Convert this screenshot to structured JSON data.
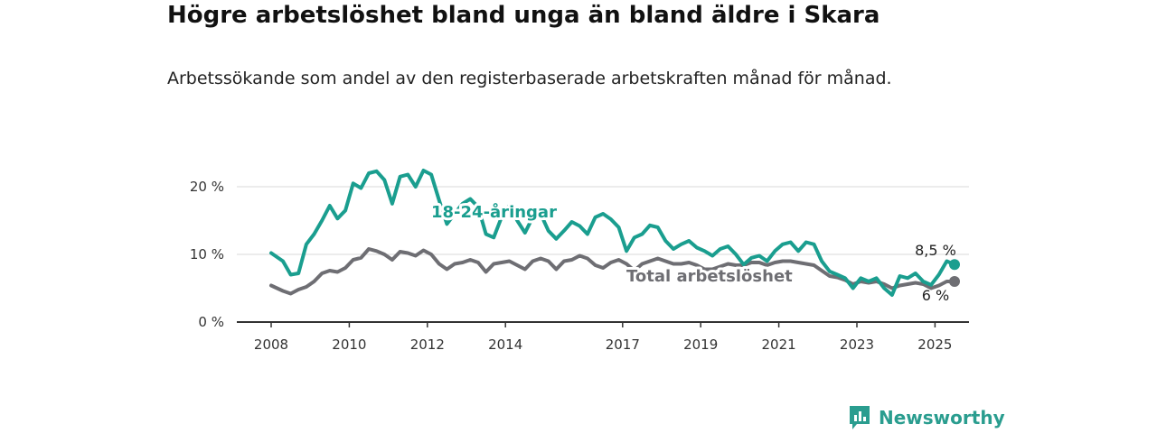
{
  "title": "Högre arbetslöshet bland unga än bland äldre i Skara",
  "subtitle": "Arbetssökande som andel av den registerbaserade arbetskraften månad för månad.",
  "brand": "Newsworthy",
  "colors": {
    "youth": "#1a9e8f",
    "total": "#6e6e73",
    "grid": "#d9d9d9",
    "axis": "#333333"
  },
  "chart_data": {
    "type": "line",
    "x_ticks": [
      "2008",
      "2010",
      "2012",
      "2014",
      "2017",
      "2019",
      "2021",
      "2023",
      "2025"
    ],
    "y_ticks": [
      "0 %",
      "10 %",
      "20 %"
    ],
    "ylim": [
      0,
      25
    ],
    "grid": true,
    "series": [
      {
        "key": "youth",
        "name": "18-24-åringar",
        "end_label": "8,5 %",
        "end_value": 8.5,
        "points": [
          [
            2008.0,
            10.2
          ],
          [
            2008.3,
            9.0
          ],
          [
            2008.5,
            7.0
          ],
          [
            2008.7,
            7.2
          ],
          [
            2008.9,
            11.5
          ],
          [
            2009.1,
            13.0
          ],
          [
            2009.3,
            15.0
          ],
          [
            2009.5,
            17.2
          ],
          [
            2009.7,
            15.3
          ],
          [
            2009.9,
            16.5
          ],
          [
            2010.1,
            20.5
          ],
          [
            2010.3,
            19.8
          ],
          [
            2010.5,
            22.0
          ],
          [
            2010.7,
            22.3
          ],
          [
            2010.9,
            21.0
          ],
          [
            2011.1,
            17.5
          ],
          [
            2011.3,
            21.5
          ],
          [
            2011.5,
            21.8
          ],
          [
            2011.7,
            20.0
          ],
          [
            2011.9,
            22.4
          ],
          [
            2012.1,
            21.8
          ],
          [
            2012.3,
            18.0
          ],
          [
            2012.5,
            14.5
          ],
          [
            2012.7,
            16.0
          ],
          [
            2012.9,
            17.5
          ],
          [
            2013.1,
            18.2
          ],
          [
            2013.3,
            17.0
          ],
          [
            2013.5,
            13.0
          ],
          [
            2013.7,
            12.5
          ],
          [
            2013.9,
            15.5
          ],
          [
            2014.1,
            17.2
          ],
          [
            2014.3,
            15.0
          ],
          [
            2014.5,
            13.2
          ],
          [
            2014.7,
            15.5
          ],
          [
            2014.9,
            16.0
          ],
          [
            2015.1,
            13.5
          ],
          [
            2015.3,
            12.3
          ],
          [
            2015.5,
            13.5
          ],
          [
            2015.7,
            14.8
          ],
          [
            2015.9,
            14.2
          ],
          [
            2016.1,
            13.0
          ],
          [
            2016.3,
            15.5
          ],
          [
            2016.5,
            16.0
          ],
          [
            2016.7,
            15.2
          ],
          [
            2016.9,
            14.0
          ],
          [
            2017.1,
            10.5
          ],
          [
            2017.3,
            12.5
          ],
          [
            2017.5,
            13.0
          ],
          [
            2017.7,
            14.3
          ],
          [
            2017.9,
            14.0
          ],
          [
            2018.1,
            12.0
          ],
          [
            2018.3,
            10.8
          ],
          [
            2018.5,
            11.5
          ],
          [
            2018.7,
            12.0
          ],
          [
            2018.9,
            11.0
          ],
          [
            2019.1,
            10.5
          ],
          [
            2019.3,
            9.8
          ],
          [
            2019.5,
            10.8
          ],
          [
            2019.7,
            11.2
          ],
          [
            2019.9,
            10.0
          ],
          [
            2020.1,
            8.5
          ],
          [
            2020.3,
            9.5
          ],
          [
            2020.5,
            9.8
          ],
          [
            2020.7,
            9.0
          ],
          [
            2020.9,
            10.5
          ],
          [
            2021.1,
            11.5
          ],
          [
            2021.3,
            11.8
          ],
          [
            2021.5,
            10.5
          ],
          [
            2021.7,
            11.8
          ],
          [
            2021.9,
            11.5
          ],
          [
            2022.1,
            9.0
          ],
          [
            2022.3,
            7.5
          ],
          [
            2022.5,
            7.0
          ],
          [
            2022.7,
            6.5
          ],
          [
            2022.9,
            5.0
          ],
          [
            2023.1,
            6.5
          ],
          [
            2023.3,
            6.0
          ],
          [
            2023.5,
            6.5
          ],
          [
            2023.7,
            5.0
          ],
          [
            2023.9,
            4.0
          ],
          [
            2024.1,
            6.8
          ],
          [
            2024.3,
            6.5
          ],
          [
            2024.5,
            7.2
          ],
          [
            2024.7,
            6.0
          ],
          [
            2024.9,
            5.5
          ],
          [
            2025.1,
            7.0
          ],
          [
            2025.3,
            9.0
          ],
          [
            2025.5,
            8.5
          ]
        ]
      },
      {
        "key": "total",
        "name": "Total arbetslöshet",
        "end_label": "6 %",
        "end_value": 6.0,
        "points": [
          [
            2008.0,
            5.4
          ],
          [
            2008.3,
            4.6
          ],
          [
            2008.5,
            4.2
          ],
          [
            2008.7,
            4.8
          ],
          [
            2008.9,
            5.2
          ],
          [
            2009.1,
            6.0
          ],
          [
            2009.3,
            7.2
          ],
          [
            2009.5,
            7.6
          ],
          [
            2009.7,
            7.4
          ],
          [
            2009.9,
            8.0
          ],
          [
            2010.1,
            9.2
          ],
          [
            2010.3,
            9.5
          ],
          [
            2010.5,
            10.8
          ],
          [
            2010.7,
            10.5
          ],
          [
            2010.9,
            10.0
          ],
          [
            2011.1,
            9.2
          ],
          [
            2011.3,
            10.4
          ],
          [
            2011.5,
            10.2
          ],
          [
            2011.7,
            9.8
          ],
          [
            2011.9,
            10.6
          ],
          [
            2012.1,
            10.0
          ],
          [
            2012.3,
            8.6
          ],
          [
            2012.5,
            7.8
          ],
          [
            2012.7,
            8.6
          ],
          [
            2012.9,
            8.8
          ],
          [
            2013.1,
            9.2
          ],
          [
            2013.3,
            8.8
          ],
          [
            2013.5,
            7.4
          ],
          [
            2013.7,
            8.6
          ],
          [
            2013.9,
            8.8
          ],
          [
            2014.1,
            9.0
          ],
          [
            2014.3,
            8.4
          ],
          [
            2014.5,
            7.8
          ],
          [
            2014.7,
            9.0
          ],
          [
            2014.9,
            9.4
          ],
          [
            2015.1,
            9.0
          ],
          [
            2015.3,
            7.8
          ],
          [
            2015.5,
            9.0
          ],
          [
            2015.7,
            9.2
          ],
          [
            2015.9,
            9.8
          ],
          [
            2016.1,
            9.4
          ],
          [
            2016.3,
            8.4
          ],
          [
            2016.5,
            8.0
          ],
          [
            2016.7,
            8.8
          ],
          [
            2016.9,
            9.2
          ],
          [
            2017.1,
            8.6
          ],
          [
            2017.3,
            7.6
          ],
          [
            2017.5,
            8.6
          ],
          [
            2017.7,
            9.0
          ],
          [
            2017.9,
            9.4
          ],
          [
            2018.1,
            9.0
          ],
          [
            2018.3,
            8.6
          ],
          [
            2018.5,
            8.6
          ],
          [
            2018.7,
            8.8
          ],
          [
            2018.9,
            8.4
          ],
          [
            2019.1,
            7.8
          ],
          [
            2019.3,
            7.8
          ],
          [
            2019.5,
            8.2
          ],
          [
            2019.7,
            8.6
          ],
          [
            2019.9,
            8.4
          ],
          [
            2020.1,
            8.4
          ],
          [
            2020.3,
            8.8
          ],
          [
            2020.5,
            8.8
          ],
          [
            2020.7,
            8.4
          ],
          [
            2020.9,
            8.8
          ],
          [
            2021.1,
            9.0
          ],
          [
            2021.3,
            9.0
          ],
          [
            2021.5,
            8.8
          ],
          [
            2021.7,
            8.6
          ],
          [
            2021.9,
            8.4
          ],
          [
            2022.1,
            7.6
          ],
          [
            2022.3,
            6.8
          ],
          [
            2022.5,
            6.6
          ],
          [
            2022.7,
            6.2
          ],
          [
            2022.9,
            5.6
          ],
          [
            2023.1,
            6.0
          ],
          [
            2023.3,
            5.8
          ],
          [
            2023.5,
            6.0
          ],
          [
            2023.7,
            5.6
          ],
          [
            2023.9,
            5.0
          ],
          [
            2024.1,
            5.4
          ],
          [
            2024.3,
            5.6
          ],
          [
            2024.5,
            5.8
          ],
          [
            2024.7,
            5.6
          ],
          [
            2024.9,
            5.0
          ],
          [
            2025.1,
            5.4
          ],
          [
            2025.3,
            6.0
          ],
          [
            2025.5,
            6.0
          ]
        ]
      }
    ]
  }
}
